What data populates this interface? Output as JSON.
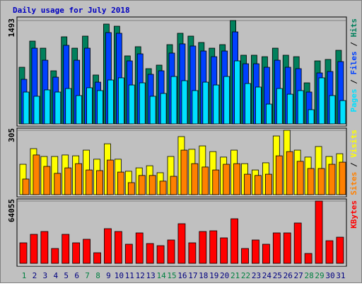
{
  "chart_data": [
    {
      "type": "bar",
      "title": "Daily usage for July 2018",
      "categories": [
        "1",
        "2",
        "3",
        "4",
        "5",
        "6",
        "7",
        "8",
        "9",
        "10",
        "11",
        "12",
        "13",
        "14",
        "15",
        "16",
        "17",
        "18",
        "19",
        "20",
        "21",
        "22",
        "23",
        "24",
        "25",
        "26",
        "27",
        "28",
        "29",
        "30",
        "31"
      ],
      "category_colors": [
        "#008040",
        "#000080",
        "#000080",
        "#000080",
        "#000080",
        "#000080",
        "#008040",
        "#008040",
        "#000080",
        "#000080",
        "#000080",
        "#000080",
        "#000080",
        "#008040",
        "#008040",
        "#000080",
        "#000080",
        "#000080",
        "#000080",
        "#000080",
        "#008040",
        "#008040",
        "#000080",
        "#000080",
        "#000080",
        "#000080",
        "#000080",
        "#008040",
        "#008040",
        "#000080",
        "#000080"
      ],
      "legend_separator": " / ",
      "ylim": [
        0,
        1493
      ],
      "yticks": [
        1493
      ],
      "series": [
        {
          "name": "Hits",
          "color": "#00805c",
          "values": [
            818,
            1196,
            1094,
            767,
            1258,
            1094,
            1268,
            706,
            1442,
            1411,
            982,
            1115,
            798,
            849,
            1145,
            1309,
            1268,
            1176,
            1094,
            1145,
            1493,
            992,
            992,
            971,
            1094,
            992,
            971,
            593,
            910,
            931,
            1063
          ]
        },
        {
          "name": "Files",
          "color": "#0040ff",
          "values": [
            644,
            1094,
            920,
            675,
            1135,
            920,
            1094,
            603,
            1319,
            1309,
            910,
            1012,
            716,
            767,
            1023,
            1156,
            1125,
            1053,
            971,
            1053,
            1329,
            869,
            869,
            818,
            920,
            818,
            798,
            460,
            736,
            757,
            900
          ]
        },
        {
          "name": "Pages",
          "color": "#00e0ff",
          "values": [
            460,
            399,
            491,
            460,
            511,
            409,
            522,
            481,
            634,
            665,
            562,
            593,
            399,
            440,
            685,
            624,
            481,
            603,
            562,
            685,
            910,
            583,
            532,
            286,
            511,
            429,
            481,
            205,
            665,
            409,
            337
          ]
        }
      ]
    },
    {
      "type": "bar",
      "ylim": [
        0,
        305
      ],
      "yticks": [
        305
      ],
      "series": [
        {
          "name": "Visits",
          "color": "#ffff00",
          "values": [
            144,
            218,
            181,
            181,
            188,
            184,
            211,
            168,
            241,
            168,
            111,
            127,
            137,
            104,
            181,
            275,
            215,
            231,
            204,
            178,
            211,
            147,
            117,
            151,
            278,
            305,
            211,
            178,
            228,
            181,
            194
          ]
        },
        {
          "name": "Sites",
          "color": "#ff8000",
          "values": [
            74,
            188,
            134,
            101,
            127,
            147,
            117,
            114,
            164,
            107,
            57,
            91,
            91,
            64,
            87,
            211,
            147,
            131,
            117,
            144,
            147,
            97,
            91,
            97,
            184,
            204,
            158,
            124,
            124,
            144,
            154
          ]
        }
      ]
    },
    {
      "type": "bar",
      "ylim": [
        0,
        64055
      ],
      "yticks": [
        64055
      ],
      "series": [
        {
          "name": "KBytes",
          "color": "#ff0000",
          "values": [
            21109,
            29844,
            32756,
            15286,
            29844,
            21109,
            24749,
            10919,
            35668,
            32756,
            19654,
            31300,
            20382,
            18198,
            24021,
            40763,
            21109,
            32756,
            33484,
            26205,
            45858,
            15286,
            24021,
            19654,
            31300,
            31300,
            41491,
            10191,
            64055,
            23293,
            26933
          ]
        }
      ]
    }
  ]
}
